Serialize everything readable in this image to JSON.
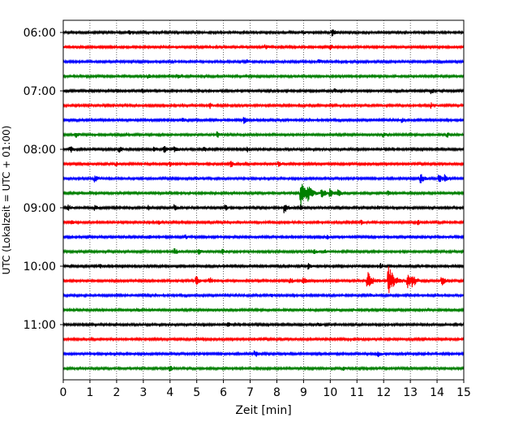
{
  "chart_data": {
    "type": "line",
    "title": "",
    "xlabel": "Zeit  [min]",
    "ylabel": "UTC (Lokalzeit = UTC + 01:00)",
    "xlim": [
      0,
      15
    ],
    "x_ticks": [
      0,
      1,
      2,
      3,
      4,
      5,
      6,
      7,
      8,
      9,
      10,
      11,
      12,
      13,
      14,
      15
    ],
    "y_tick_labels": [
      "06:00",
      "07:00",
      "08:00",
      "09:00",
      "10:00",
      "11:00"
    ],
    "grid": "vertical dotted",
    "traces_per_hour": 4,
    "trace_colors": [
      "#000000",
      "#ff0000",
      "#0000ff",
      "#008000"
    ],
    "rows": [
      {
        "start": "06:00",
        "events": [
          [
            2.5,
            0.3
          ],
          [
            3.2,
            0.3
          ],
          [
            9.0,
            0.3
          ],
          [
            10.1,
            0.6
          ]
        ]
      },
      {
        "start": "06:15",
        "events": [
          [
            7.6,
            0.4
          ],
          [
            10.0,
            0.5
          ]
        ]
      },
      {
        "start": "06:30",
        "events": [
          [
            6.9,
            0.3
          ],
          [
            9.6,
            0.3
          ]
        ]
      },
      {
        "start": "06:45",
        "events": [
          [
            3.2,
            0.3
          ],
          [
            4.3,
            0.3
          ]
        ]
      },
      {
        "start": "07:00",
        "events": [
          [
            2.0,
            0.3
          ],
          [
            3.0,
            0.3
          ],
          [
            10.2,
            0.4
          ],
          [
            13.8,
            0.5
          ]
        ]
      },
      {
        "start": "07:15",
        "events": [
          [
            5.5,
            0.5
          ],
          [
            13.8,
            0.5
          ]
        ]
      },
      {
        "start": "07:30",
        "events": [
          [
            4.5,
            0.5
          ],
          [
            6.8,
            0.6
          ],
          [
            12.7,
            0.4
          ]
        ]
      },
      {
        "start": "07:45",
        "events": [
          [
            0.5,
            0.4
          ],
          [
            5.8,
            0.5
          ],
          [
            12.0,
            0.4
          ],
          [
            14.4,
            0.5
          ]
        ]
      },
      {
        "start": "08:00",
        "events": [
          [
            0.3,
            0.5
          ],
          [
            2.1,
            0.6
          ],
          [
            3.4,
            0.4
          ],
          [
            3.8,
            0.5
          ],
          [
            4.2,
            0.4
          ],
          [
            5.3,
            0.4
          ],
          [
            6.9,
            0.4
          ]
        ]
      },
      {
        "start": "08:15",
        "events": [
          [
            2.0,
            0.3
          ],
          [
            4.0,
            0.4
          ],
          [
            6.3,
            0.6
          ],
          [
            8.1,
            0.4
          ]
        ]
      },
      {
        "start": "08:30",
        "events": [
          [
            1.2,
            0.6
          ],
          [
            5.0,
            0.3
          ],
          [
            13.4,
            0.9
          ],
          [
            14.1,
            0.7
          ],
          [
            14.3,
            0.6
          ]
        ]
      },
      {
        "start": "08:45",
        "events": [
          [
            8.9,
            2.8
          ],
          [
            9.2,
            0.8
          ],
          [
            9.7,
            0.9
          ],
          [
            10.0,
            0.8
          ],
          [
            10.3,
            0.6
          ],
          [
            12.2,
            0.4
          ]
        ]
      },
      {
        "start": "09:00",
        "events": [
          [
            0.2,
            0.5
          ],
          [
            1.2,
            0.4
          ],
          [
            3.2,
            0.4
          ],
          [
            4.2,
            0.5
          ],
          [
            6.1,
            0.5
          ],
          [
            8.3,
            0.9
          ],
          [
            8.9,
            0.6
          ],
          [
            11.8,
            0.4
          ]
        ]
      },
      {
        "start": "09:15",
        "events": [
          [
            0.3,
            0.4
          ],
          [
            3.6,
            0.3
          ],
          [
            11.2,
            0.4
          ],
          [
            13.3,
            0.4
          ]
        ]
      },
      {
        "start": "09:30",
        "events": [
          [
            3.2,
            0.3
          ],
          [
            4.6,
            0.3
          ],
          [
            9.9,
            0.4
          ],
          [
            13.0,
            0.4
          ]
        ]
      },
      {
        "start": "09:45",
        "events": [
          [
            4.2,
            0.5
          ],
          [
            5.1,
            0.4
          ],
          [
            6.0,
            0.4
          ],
          [
            9.4,
            0.4
          ],
          [
            9.8,
            0.4
          ]
        ]
      },
      {
        "start": "10:00",
        "events": [
          [
            1.4,
            0.3
          ],
          [
            9.2,
            0.5
          ],
          [
            11.9,
            0.5
          ]
        ]
      },
      {
        "start": "10:15",
        "events": [
          [
            5.0,
            0.8
          ],
          [
            5.5,
            0.6
          ],
          [
            8.5,
            0.6
          ],
          [
            9.0,
            0.8
          ],
          [
            11.4,
            1.8
          ],
          [
            12.2,
            2.8
          ],
          [
            12.9,
            1.4
          ],
          [
            13.1,
            1.0
          ],
          [
            14.2,
            0.8
          ]
        ]
      },
      {
        "start": "10:30",
        "events": [
          [
            7.8,
            0.3
          ],
          [
            11.5,
            0.3
          ]
        ]
      },
      {
        "start": "10:45",
        "events": [
          [
            2.8,
            0.3
          ],
          [
            10.8,
            0.3
          ]
        ]
      },
      {
        "start": "11:00",
        "events": [
          [
            6.2,
            0.3
          ],
          [
            9.6,
            0.3
          ]
        ]
      },
      {
        "start": "11:15",
        "events": [
          [
            10.8,
            0.3
          ]
        ]
      },
      {
        "start": "11:30",
        "events": [
          [
            7.2,
            0.6
          ],
          [
            11.8,
            0.6
          ]
        ]
      },
      {
        "start": "11:45",
        "events": [
          [
            4.0,
            0.5
          ],
          [
            10.5,
            0.3
          ]
        ]
      }
    ]
  }
}
